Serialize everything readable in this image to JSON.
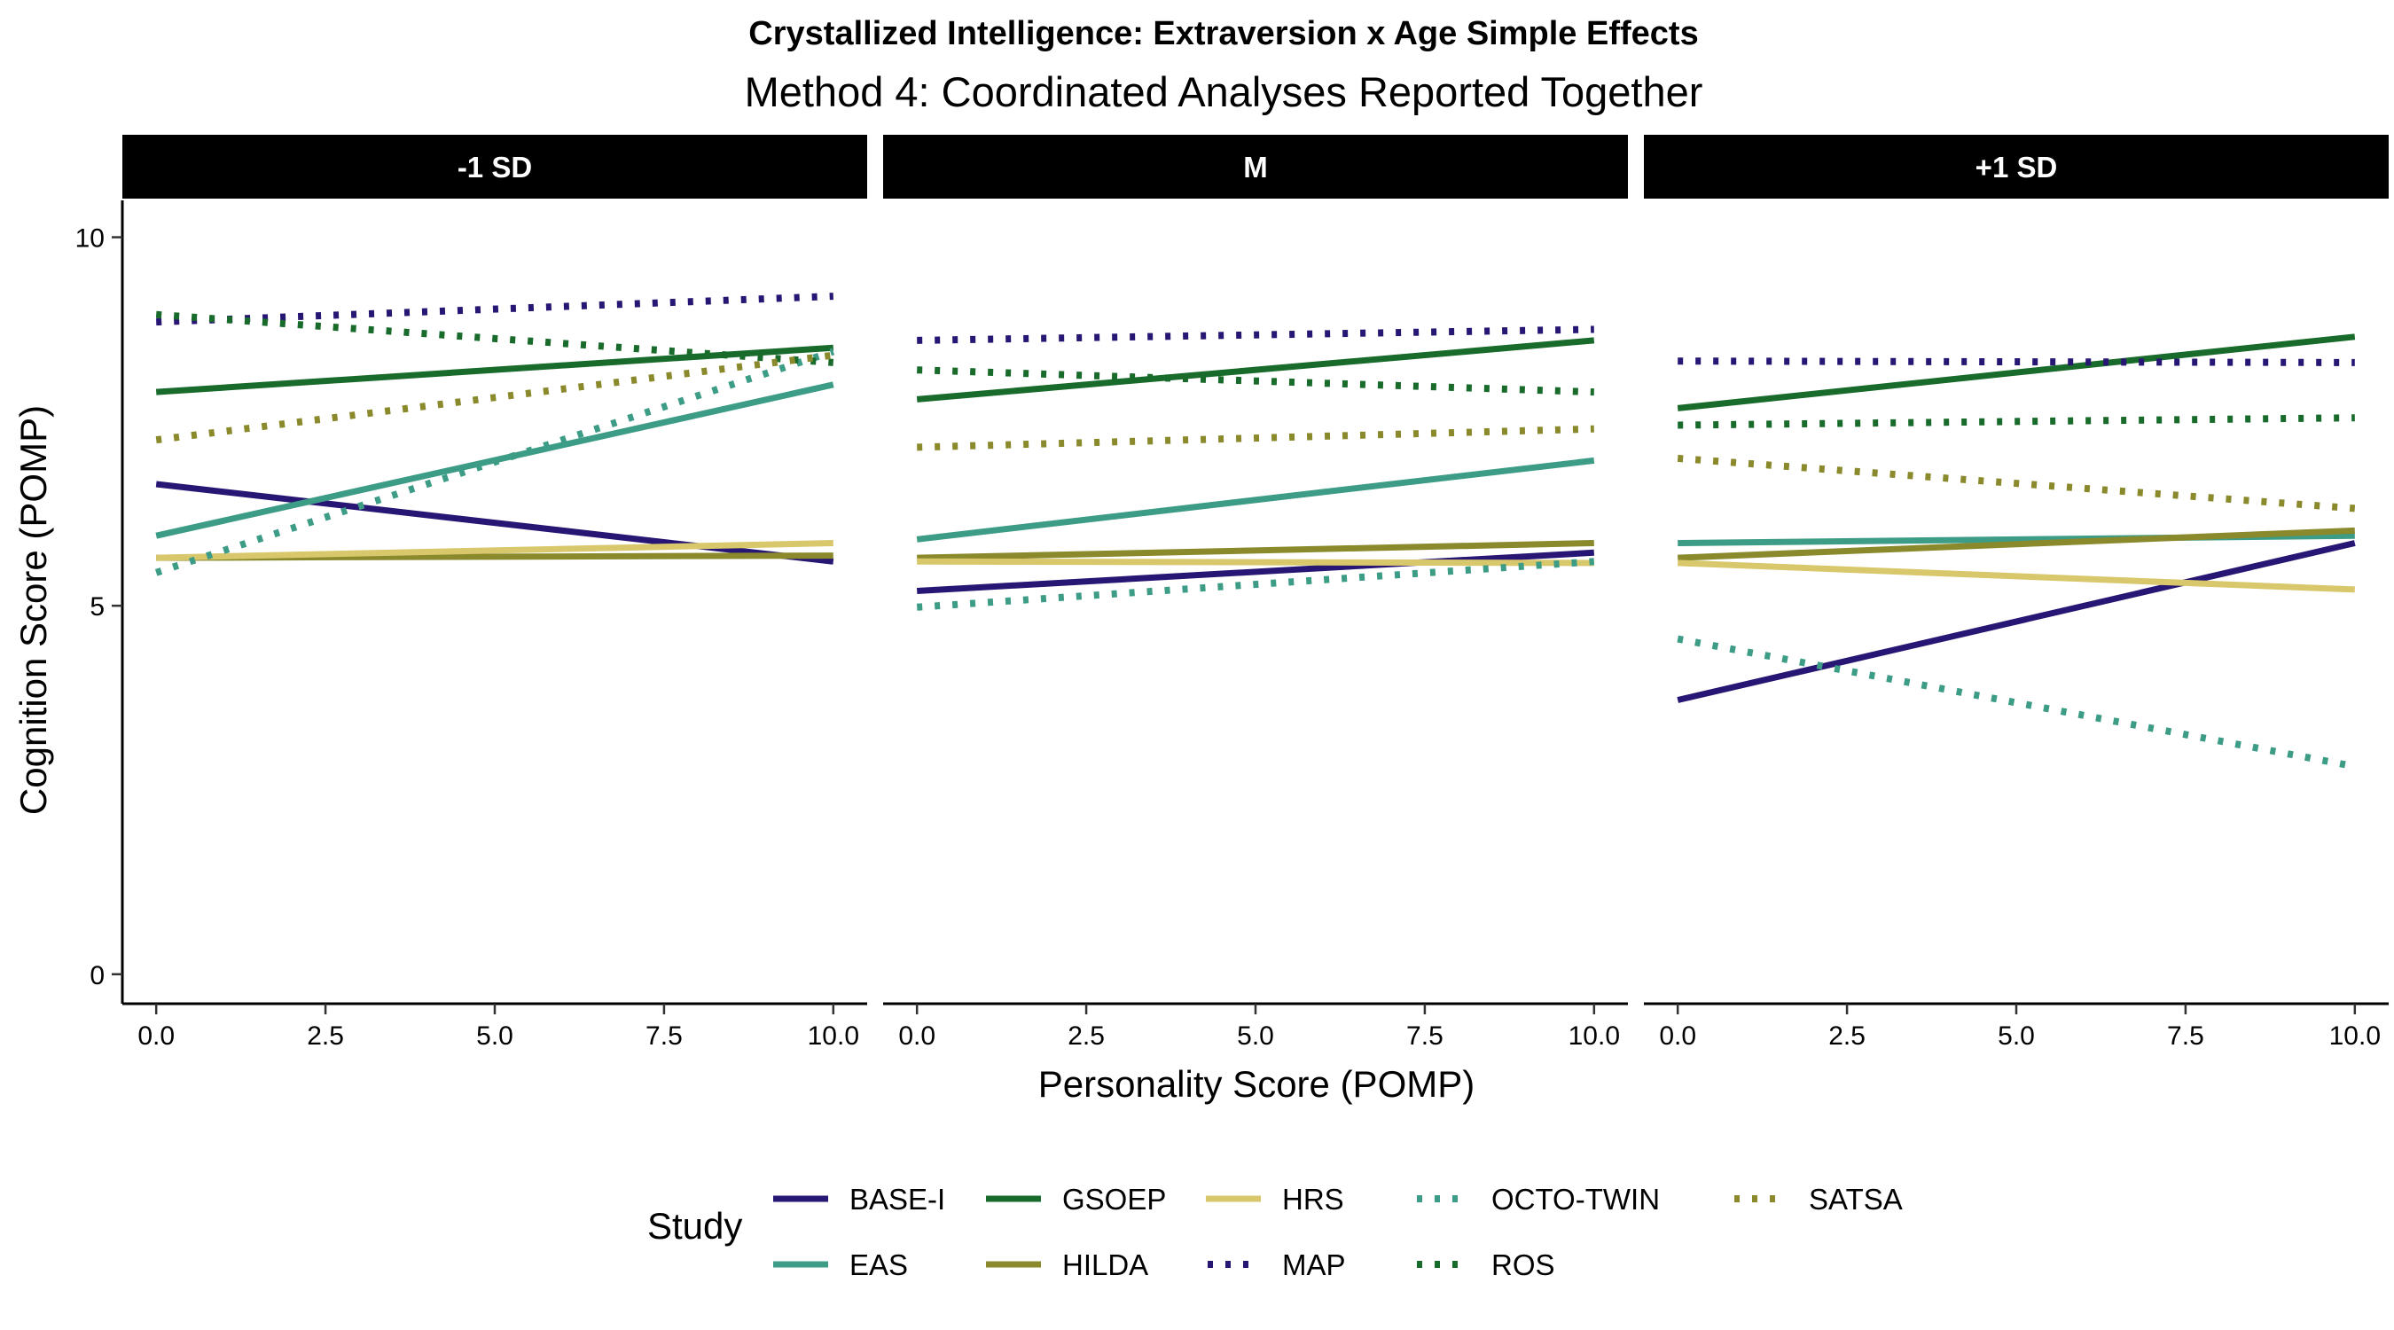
{
  "chart_data": {
    "type": "line",
    "title": "Crystallized Intelligence: Extraversion x Age Simple Effects",
    "subtitle": "Method 4: Coordinated Analyses Reported Together",
    "xlabel": "Personality Score (POMP)",
    "ylabel": "Cognition Score (POMP)",
    "xlim": [
      -0.5,
      10.5
    ],
    "ylim": [
      -0.4,
      10.5
    ],
    "x_ticks": [
      0,
      2.5,
      5,
      7.5,
      10
    ],
    "x_tick_labels": [
      "0.0",
      "2.5",
      "5.0",
      "7.5",
      "10.0"
    ],
    "y_ticks": [
      0,
      5,
      10
    ],
    "y_tick_labels": [
      "0",
      "5",
      "10"
    ],
    "grid": false,
    "legend": {
      "title": "Study",
      "placement": "bottom"
    },
    "panels": [
      {
        "label": "-1 SD",
        "series": [
          {
            "name": "BASE-I",
            "x": [
              0,
              10
            ],
            "y": [
              6.65,
              5.6
            ]
          },
          {
            "name": "EAS",
            "x": [
              0,
              10
            ],
            "y": [
              5.95,
              8.0
            ]
          },
          {
            "name": "GSOEP",
            "x": [
              0,
              10
            ],
            "y": [
              7.9,
              8.5
            ]
          },
          {
            "name": "HILDA",
            "x": [
              0,
              10
            ],
            "y": [
              5.65,
              5.68
            ]
          },
          {
            "name": "HRS",
            "x": [
              0,
              10
            ],
            "y": [
              5.65,
              5.85
            ]
          },
          {
            "name": "MAP",
            "x": [
              0,
              10
            ],
            "y": [
              8.85,
              9.2
            ]
          },
          {
            "name": "OCTO-TWIN",
            "x": [
              0,
              10
            ],
            "y": [
              5.45,
              8.45
            ]
          },
          {
            "name": "ROS",
            "x": [
              0,
              10
            ],
            "y": [
              8.95,
              8.3
            ]
          },
          {
            "name": "SATSA",
            "x": [
              0,
              10
            ],
            "y": [
              7.25,
              8.4
            ]
          }
        ]
      },
      {
        "label": "M",
        "series": [
          {
            "name": "BASE-I",
            "x": [
              0,
              10
            ],
            "y": [
              5.2,
              5.72
            ]
          },
          {
            "name": "EAS",
            "x": [
              0,
              10
            ],
            "y": [
              5.9,
              6.97
            ]
          },
          {
            "name": "GSOEP",
            "x": [
              0,
              10
            ],
            "y": [
              7.8,
              8.6
            ]
          },
          {
            "name": "HILDA",
            "x": [
              0,
              10
            ],
            "y": [
              5.65,
              5.85
            ]
          },
          {
            "name": "HRS",
            "x": [
              0,
              10
            ],
            "y": [
              5.6,
              5.58
            ]
          },
          {
            "name": "MAP",
            "x": [
              0,
              10
            ],
            "y": [
              8.6,
              8.75
            ]
          },
          {
            "name": "OCTO-TWIN",
            "x": [
              0,
              10
            ],
            "y": [
              4.98,
              5.6
            ]
          },
          {
            "name": "ROS",
            "x": [
              0,
              10
            ],
            "y": [
              8.2,
              7.9
            ]
          },
          {
            "name": "SATSA",
            "x": [
              0,
              10
            ],
            "y": [
              7.15,
              7.4
            ]
          }
        ]
      },
      {
        "label": "+1 SD",
        "series": [
          {
            "name": "BASE-I",
            "x": [
              0,
              10
            ],
            "y": [
              3.72,
              5.85
            ]
          },
          {
            "name": "EAS",
            "x": [
              0,
              10
            ],
            "y": [
              5.85,
              5.95
            ]
          },
          {
            "name": "GSOEP",
            "x": [
              0,
              10
            ],
            "y": [
              7.68,
              8.65
            ]
          },
          {
            "name": "HILDA",
            "x": [
              0,
              10
            ],
            "y": [
              5.65,
              6.02
            ]
          },
          {
            "name": "HRS",
            "x": [
              0,
              10
            ],
            "y": [
              5.58,
              5.22
            ]
          },
          {
            "name": "MAP",
            "x": [
              0,
              10
            ],
            "y": [
              8.32,
              8.3
            ]
          },
          {
            "name": "OCTO-TWIN",
            "x": [
              0,
              10
            ],
            "y": [
              4.55,
              2.82
            ]
          },
          {
            "name": "ROS",
            "x": [
              0,
              10
            ],
            "y": [
              7.45,
              7.55
            ]
          },
          {
            "name": "SATSA",
            "x": [
              0,
              10
            ],
            "y": [
              7.0,
              6.32
            ]
          }
        ]
      }
    ],
    "styles": [
      {
        "name": "BASE-I",
        "color": "#271673",
        "dash": "solid"
      },
      {
        "name": "EAS",
        "color": "#3d9c86",
        "dash": "solid"
      },
      {
        "name": "GSOEP",
        "color": "#196b2b",
        "dash": "solid"
      },
      {
        "name": "HILDA",
        "color": "#8a8a2d",
        "dash": "solid"
      },
      {
        "name": "HRS",
        "color": "#d8c76b",
        "dash": "solid"
      },
      {
        "name": "MAP",
        "color": "#271673",
        "dash": "dotted"
      },
      {
        "name": "OCTO-TWIN",
        "color": "#3d9c86",
        "dash": "dotted"
      },
      {
        "name": "ROS",
        "color": "#196b2b",
        "dash": "dotted"
      },
      {
        "name": "SATSA",
        "color": "#8a8a2d",
        "dash": "dotted"
      }
    ]
  }
}
